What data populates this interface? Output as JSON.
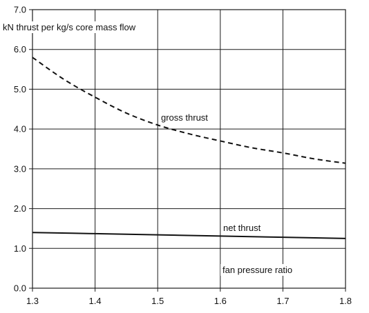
{
  "chart_data": {
    "type": "line",
    "ylabel": "kN thrust per kg/s core mass flow",
    "xlabel": "fan pressure ratio",
    "xlim": [
      1.3,
      1.8
    ],
    "ylim": [
      0.0,
      7.0
    ],
    "x_ticks": [
      "1.3",
      "1.4",
      "1.5",
      "1.6",
      "1.7",
      "1.8"
    ],
    "y_ticks": [
      "0.0",
      "1.0",
      "2.0",
      "3.0",
      "4.0",
      "5.0",
      "6.0",
      "7.0"
    ],
    "grid": true,
    "series": [
      {
        "name": "gross thrust",
        "style": "dashed",
        "x": [
          1.3,
          1.35,
          1.4,
          1.45,
          1.5,
          1.55,
          1.6,
          1.65,
          1.7,
          1.75,
          1.8
        ],
        "y": [
          5.8,
          5.25,
          4.8,
          4.4,
          4.1,
          3.88,
          3.7,
          3.53,
          3.4,
          3.25,
          3.14
        ]
      },
      {
        "name": "net thrust",
        "style": "solid",
        "x": [
          1.3,
          1.4,
          1.5,
          1.6,
          1.7,
          1.8
        ],
        "y": [
          1.4,
          1.37,
          1.34,
          1.31,
          1.28,
          1.25
        ]
      }
    ]
  }
}
